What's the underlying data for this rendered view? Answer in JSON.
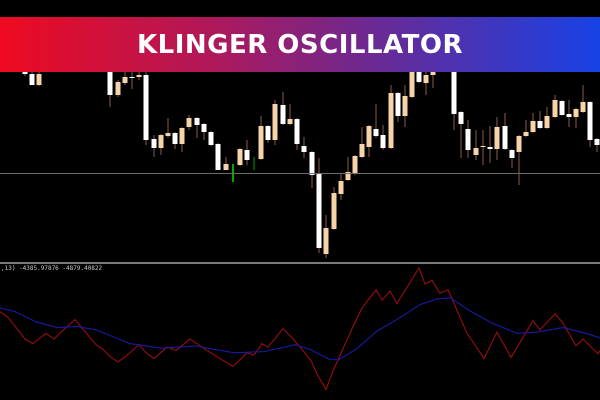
{
  "banner": {
    "title": "KLINGER OSCILLATOR"
  },
  "indicator": {
    "label": ",13) -4385.97876 -4879.40822"
  },
  "colors": {
    "background": "#000000",
    "bull_candle": "#ffffff",
    "bear_candle": "#f7d3a8",
    "wick": "#8a5a50",
    "signal_tick": "#00e000",
    "klinger_line": "#9b0d0d",
    "signal_line": "#1a1aa8",
    "banner_start": "#ee0a1f",
    "banner_end": "#1742e6"
  },
  "chart_data": [
    {
      "type": "candlestick",
      "title": "",
      "candles": [
        {
          "x": 25,
          "o": 226,
          "c": 228,
          "h": 229,
          "l": 224,
          "col": "up"
        },
        {
          "x": 32,
          "o": 215,
          "c": 226,
          "h": 228,
          "l": 215,
          "col": "up"
        },
        {
          "x": 39,
          "o": 226,
          "c": 215,
          "h": 228,
          "l": 214,
          "col": "down"
        },
        {
          "x": 110,
          "o": 205,
          "c": 228,
          "h": 228,
          "l": 193,
          "col": "up"
        },
        {
          "x": 118,
          "o": 218,
          "c": 205,
          "h": 220,
          "l": 203,
          "col": "down"
        },
        {
          "x": 125,
          "o": 223,
          "c": 217,
          "h": 228,
          "l": 215,
          "col": "down"
        },
        {
          "x": 132,
          "o": 222,
          "c": 223,
          "h": 228,
          "l": 211,
          "col": "up"
        },
        {
          "x": 139,
          "o": 225,
          "c": 223,
          "h": 228,
          "l": 220,
          "col": "down"
        },
        {
          "x": 146,
          "o": 160,
          "c": 225,
          "h": 228,
          "l": 155,
          "col": "up"
        },
        {
          "x": 154,
          "o": 152,
          "c": 161,
          "h": 165,
          "l": 143,
          "col": "up"
        },
        {
          "x": 161,
          "o": 165,
          "c": 152,
          "h": 166,
          "l": 145,
          "col": "down"
        },
        {
          "x": 168,
          "o": 167,
          "c": 164,
          "h": 182,
          "l": 162,
          "col": "down"
        },
        {
          "x": 175,
          "o": 156,
          "c": 167,
          "h": 168,
          "l": 151,
          "col": "up"
        },
        {
          "x": 182,
          "o": 172,
          "c": 156,
          "h": 173,
          "l": 148,
          "col": "down"
        },
        {
          "x": 189,
          "o": 182,
          "c": 173,
          "h": 185,
          "l": 170,
          "col": "down"
        },
        {
          "x": 197,
          "o": 175,
          "c": 182,
          "h": 183,
          "l": 162,
          "col": "up"
        },
        {
          "x": 204,
          "o": 168,
          "c": 176,
          "h": 177,
          "l": 160,
          "col": "up"
        },
        {
          "x": 211,
          "o": 155,
          "c": 168,
          "h": 169,
          "l": 154,
          "col": "up"
        },
        {
          "x": 218,
          "o": 130,
          "c": 156,
          "h": 157,
          "l": 130,
          "col": "up"
        },
        {
          "x": 226,
          "o": 136,
          "c": 130,
          "h": 143,
          "l": 130,
          "col": "down"
        },
        {
          "x": 240,
          "o": 151,
          "c": 135,
          "h": 152,
          "l": 134,
          "col": "down"
        },
        {
          "x": 247,
          "o": 140,
          "c": 150,
          "h": 160,
          "l": 135,
          "col": "up"
        },
        {
          "x": 261,
          "o": 174,
          "c": 141,
          "h": 184,
          "l": 140,
          "col": "down"
        },
        {
          "x": 268,
          "o": 160,
          "c": 174,
          "h": 175,
          "l": 157,
          "col": "up"
        },
        {
          "x": 275,
          "o": 196,
          "c": 160,
          "h": 200,
          "l": 155,
          "col": "down"
        },
        {
          "x": 283,
          "o": 176,
          "c": 195,
          "h": 208,
          "l": 175,
          "col": "up"
        },
        {
          "x": 290,
          "o": 181,
          "c": 176,
          "h": 196,
          "l": 175,
          "col": "down"
        },
        {
          "x": 297,
          "o": 156,
          "c": 181,
          "h": 182,
          "l": 150,
          "col": "up"
        },
        {
          "x": 304,
          "o": 148,
          "c": 154,
          "h": 163,
          "l": 142,
          "col": "up"
        },
        {
          "x": 312,
          "o": 125,
          "c": 148,
          "h": 149,
          "l": 112,
          "col": "up"
        },
        {
          "x": 319,
          "o": 52,
          "c": 126,
          "h": 142,
          "l": 47,
          "col": "up"
        },
        {
          "x": 326,
          "o": 72,
          "c": 46,
          "h": 85,
          "l": 42,
          "col": "down"
        },
        {
          "x": 334,
          "o": 107,
          "c": 71,
          "h": 113,
          "l": 70,
          "col": "down"
        },
        {
          "x": 341,
          "o": 119,
          "c": 106,
          "h": 127,
          "l": 100,
          "col": "down"
        },
        {
          "x": 348,
          "o": 128,
          "c": 120,
          "h": 143,
          "l": 119,
          "col": "down"
        },
        {
          "x": 355,
          "o": 144,
          "c": 127,
          "h": 145,
          "l": 125,
          "col": "down"
        },
        {
          "x": 362,
          "o": 156,
          "c": 143,
          "h": 173,
          "l": 142,
          "col": "down"
        },
        {
          "x": 369,
          "o": 174,
          "c": 153,
          "h": 175,
          "l": 143,
          "col": "down"
        },
        {
          "x": 376,
          "o": 164,
          "c": 171,
          "h": 196,
          "l": 162,
          "col": "up"
        },
        {
          "x": 383,
          "o": 152,
          "c": 165,
          "h": 175,
          "l": 150,
          "col": "up"
        },
        {
          "x": 391,
          "o": 207,
          "c": 152,
          "h": 215,
          "l": 151,
          "col": "down"
        },
        {
          "x": 398,
          "o": 184,
          "c": 207,
          "h": 208,
          "l": 178,
          "col": "up"
        },
        {
          "x": 405,
          "o": 204,
          "c": 184,
          "h": 215,
          "l": 173,
          "col": "down"
        },
        {
          "x": 412,
          "o": 228,
          "c": 203,
          "h": 228,
          "l": 202,
          "col": "down"
        },
        {
          "x": 419,
          "o": 218,
          "c": 228,
          "h": 228,
          "l": 217,
          "col": "up"
        },
        {
          "x": 426,
          "o": 225,
          "c": 217,
          "h": 228,
          "l": 205,
          "col": "down"
        },
        {
          "x": 433,
          "o": 228,
          "c": 225,
          "h": 228,
          "l": 212,
          "col": "down"
        },
        {
          "x": 454,
          "o": 186,
          "c": 228,
          "h": 228,
          "l": 170,
          "col": "up"
        },
        {
          "x": 461,
          "o": 176,
          "c": 188,
          "h": 189,
          "l": 142,
          "col": "up"
        },
        {
          "x": 468,
          "o": 150,
          "c": 171,
          "h": 180,
          "l": 142,
          "col": "up"
        },
        {
          "x": 476,
          "o": 152,
          "c": 145,
          "h": 170,
          "l": 140,
          "col": "down"
        },
        {
          "x": 483,
          "o": 154,
          "c": 153,
          "h": 170,
          "l": 135,
          "col": "down"
        },
        {
          "x": 490,
          "o": 151,
          "c": 153,
          "h": 174,
          "l": 137,
          "col": "up"
        },
        {
          "x": 497,
          "o": 173,
          "c": 151,
          "h": 183,
          "l": 140,
          "col": "down"
        },
        {
          "x": 505,
          "o": 151,
          "c": 174,
          "h": 187,
          "l": 150,
          "col": "up"
        },
        {
          "x": 512,
          "o": 142,
          "c": 150,
          "h": 151,
          "l": 132,
          "col": "up"
        },
        {
          "x": 519,
          "o": 164,
          "c": 148,
          "h": 165,
          "l": 115,
          "col": "down"
        },
        {
          "x": 526,
          "o": 168,
          "c": 164,
          "h": 180,
          "l": 163,
          "col": "down"
        },
        {
          "x": 533,
          "o": 179,
          "c": 168,
          "h": 187,
          "l": 167,
          "col": "down"
        },
        {
          "x": 540,
          "o": 172,
          "c": 179,
          "h": 189,
          "l": 171,
          "col": "up"
        },
        {
          "x": 547,
          "o": 184,
          "c": 172,
          "h": 193,
          "l": 171,
          "col": "down"
        },
        {
          "x": 555,
          "o": 200,
          "c": 183,
          "h": 205,
          "l": 182,
          "col": "down"
        },
        {
          "x": 562,
          "o": 185,
          "c": 199,
          "h": 200,
          "l": 184,
          "col": "up"
        },
        {
          "x": 569,
          "o": 183,
          "c": 186,
          "h": 200,
          "l": 173,
          "col": "up"
        },
        {
          "x": 576,
          "o": 191,
          "c": 183,
          "h": 192,
          "l": 172,
          "col": "down"
        },
        {
          "x": 583,
          "o": 198,
          "c": 188,
          "h": 215,
          "l": 187,
          "col": "down"
        },
        {
          "x": 590,
          "o": 160,
          "c": 198,
          "h": 199,
          "l": 153,
          "col": "up"
        },
        {
          "x": 597,
          "o": 155,
          "c": 161,
          "h": 162,
          "l": 148,
          "col": "up"
        }
      ],
      "signal_ticks": [
        {
          "x": 233,
          "top": 136,
          "bottom": 118,
          "col": "#00e000"
        },
        {
          "x": 254,
          "top": 143,
          "bottom": 130,
          "col": "#006a00"
        }
      ],
      "horizontal_level": 127,
      "ylim": [
        40,
        300
      ]
    },
    {
      "type": "line",
      "title": "",
      "ylim": [
        -45,
        65
      ],
      "series": [
        {
          "key": "klinger",
          "color": "#9b0d0d",
          "points": [
            [
              0,
              27
            ],
            [
              8,
              22
            ],
            [
              17,
              12
            ],
            [
              25,
              3
            ],
            [
              33,
              -1
            ],
            [
              46,
              8
            ],
            [
              54,
              3
            ],
            [
              61,
              9
            ],
            [
              75,
              20
            ],
            [
              96,
              -2
            ],
            [
              103,
              -6
            ],
            [
              111,
              -13
            ],
            [
              118,
              -17
            ],
            [
              126,
              -12
            ],
            [
              139,
              -2
            ],
            [
              146,
              -9
            ],
            [
              154,
              -14
            ],
            [
              167,
              -4
            ],
            [
              176,
              -7
            ],
            [
              190,
              3
            ],
            [
              207,
              -7
            ],
            [
              218,
              -13
            ],
            [
              233,
              -21
            ],
            [
              247,
              -9
            ],
            [
              254,
              -11
            ],
            [
              262,
              -1
            ],
            [
              268,
              -4
            ],
            [
              283,
              12
            ],
            [
              291,
              5
            ],
            [
              303,
              -7
            ],
            [
              311,
              -16
            ],
            [
              318,
              -29
            ],
            [
              326,
              -41
            ],
            [
              333,
              -25
            ],
            [
              352,
              12
            ],
            [
              362,
              30
            ],
            [
              376,
              46
            ],
            [
              382,
              37
            ],
            [
              390,
              45
            ],
            [
              397,
              34
            ],
            [
              419,
              65
            ],
            [
              425,
              51
            ],
            [
              432,
              54
            ],
            [
              440,
              43
            ],
            [
              448,
              46
            ],
            [
              467,
              8
            ],
            [
              484,
              -14
            ],
            [
              497,
              9
            ],
            [
              511,
              -13
            ],
            [
              533,
              19
            ],
            [
              540,
              11
            ],
            [
              555,
              25
            ],
            [
              563,
              17
            ],
            [
              576,
              -3
            ],
            [
              583,
              3
            ],
            [
              598,
              -10
            ],
            [
              600,
              -7
            ]
          ]
        },
        {
          "key": "signal",
          "color": "#1a1aa8",
          "points": [
            [
              0,
              30
            ],
            [
              15,
              27
            ],
            [
              36,
              18
            ],
            [
              57,
              13
            ],
            [
              77,
              14
            ],
            [
              96,
              11
            ],
            [
              130,
              -1
            ],
            [
              161,
              -5
            ],
            [
              195,
              -3
            ],
            [
              234,
              -9
            ],
            [
              264,
              -8
            ],
            [
              295,
              -2
            ],
            [
              310,
              -6
            ],
            [
              330,
              -15
            ],
            [
              339,
              -15
            ],
            [
              356,
              -6
            ],
            [
              377,
              10
            ],
            [
              395,
              19
            ],
            [
              406,
              25
            ],
            [
              420,
              33
            ],
            [
              437,
              38
            ],
            [
              450,
              39
            ],
            [
              471,
              27
            ],
            [
              492,
              17
            ],
            [
              517,
              8
            ],
            [
              536,
              9
            ],
            [
              563,
              13
            ],
            [
              586,
              8
            ],
            [
              600,
              4
            ]
          ]
        }
      ]
    }
  ]
}
